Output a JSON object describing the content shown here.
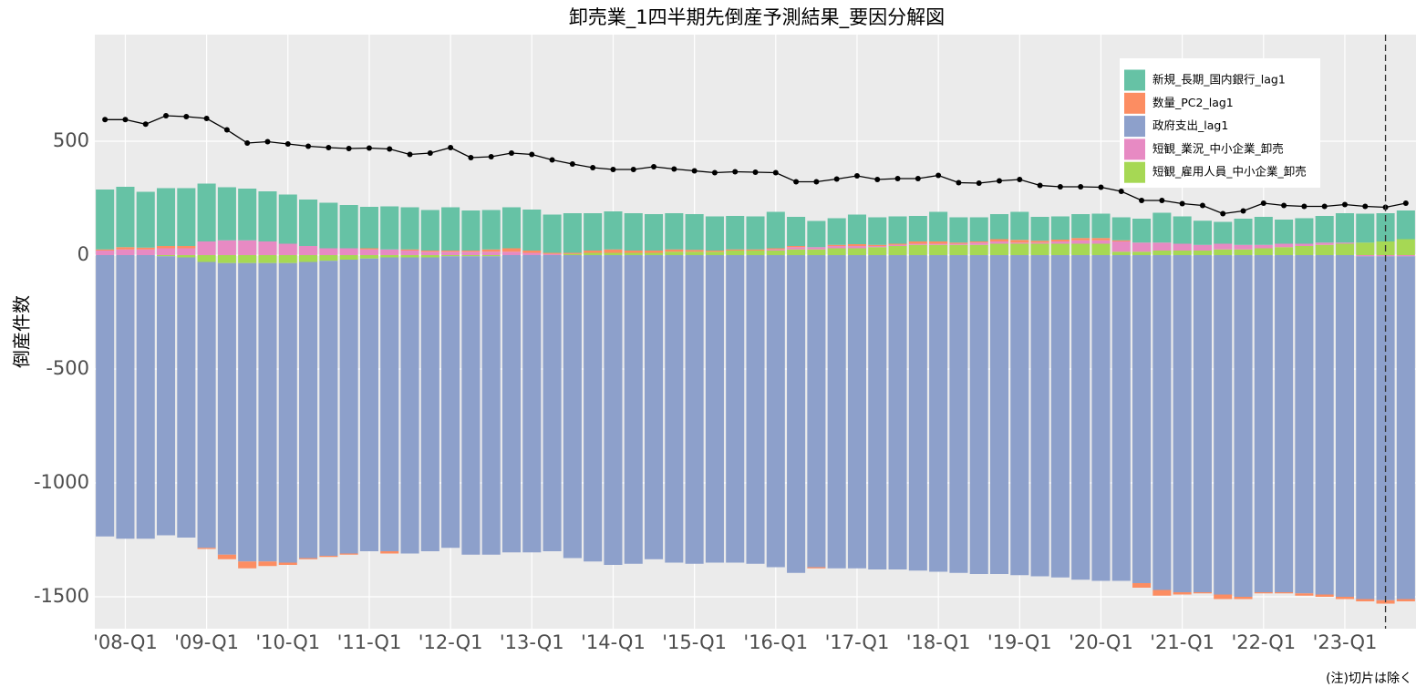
{
  "chart_data": {
    "type": "stacked-bar-line",
    "title": "卸売業_1四半期先倒産予測結果_要因分解図",
    "y_label": "倒産件数",
    "note": "(注)切片は除く",
    "categories": [
      null,
      "'08-Q1",
      null,
      null,
      null,
      "'09-Q1",
      null,
      null,
      null,
      "'10-Q1",
      null,
      null,
      null,
      "'11-Q1",
      null,
      null,
      null,
      "'12-Q1",
      null,
      null,
      null,
      "'13-Q1",
      null,
      null,
      null,
      "'14-Q1",
      null,
      null,
      null,
      "'15-Q1",
      null,
      null,
      null,
      "'16-Q1",
      null,
      null,
      null,
      "'17-Q1",
      null,
      null,
      null,
      "'18-Q1",
      null,
      null,
      null,
      "'19-Q1",
      null,
      null,
      null,
      "'20-Q1",
      null,
      null,
      null,
      "'21-Q1",
      null,
      null,
      null,
      "'22-Q1",
      null,
      null,
      null,
      "'23-Q1",
      null,
      null,
      null
    ],
    "series": [
      {
        "name": "新規_長期_国内銀行_lag1",
        "color": "#66c2a5",
        "values": [
          263,
          265,
          245,
          254,
          254,
          254,
          233,
          227,
          220,
          216,
          204,
          200,
          190,
          182,
          189,
          185,
          178,
          190,
          176,
          173,
          180,
          180,
          168,
          174,
          164,
          167,
          164,
          160,
          159,
          157,
          150,
          147,
          145,
          160,
          128,
          115,
          117,
          130,
          121,
          120,
          112,
          130,
          111,
          106,
          110,
          123,
          105,
          102,
          105,
          107,
          101,
          105,
          131,
          120,
          106,
          96,
          115,
          123,
          106,
          112,
          117,
          129,
          127,
          124,
          126
        ]
      },
      {
        "name": "数量_PC2_lag1",
        "color": "#fc8d62",
        "values": [
          5,
          10,
          8,
          10,
          10,
          -5,
          -20,
          -30,
          -20,
          -10,
          -5,
          -5,
          -5,
          5,
          -10,
          5,
          5,
          5,
          5,
          10,
          15,
          10,
          5,
          5,
          10,
          15,
          10,
          10,
          10,
          8,
          5,
          5,
          5,
          5,
          5,
          -5,
          5,
          8,
          5,
          5,
          10,
          10,
          5,
          5,
          10,
          12,
          8,
          8,
          10,
          10,
          5,
          -20,
          -25,
          -10,
          -5,
          -20,
          -10,
          -5,
          -5,
          -10,
          -10,
          -10,
          -10,
          -15,
          -10
        ]
      },
      {
        "name": "政府支出_lag1",
        "color": "#8da0cb",
        "values": [
          -1235,
          -1245,
          -1245,
          -1225,
          -1230,
          -1255,
          -1280,
          -1310,
          -1310,
          -1315,
          -1300,
          -1295,
          -1290,
          -1285,
          -1290,
          -1300,
          -1290,
          -1280,
          -1310,
          -1310,
          -1305,
          -1305,
          -1300,
          -1330,
          -1345,
          -1360,
          -1355,
          -1335,
          -1350,
          -1355,
          -1350,
          -1350,
          -1355,
          -1370,
          -1395,
          -1370,
          -1375,
          -1375,
          -1380,
          -1380,
          -1385,
          -1390,
          -1395,
          -1400,
          -1400,
          -1405,
          -1410,
          -1415,
          -1425,
          -1430,
          -1430,
          -1440,
          -1470,
          -1480,
          -1480,
          -1490,
          -1500,
          -1480,
          -1480,
          -1485,
          -1490,
          -1500,
          -1505,
          -1510,
          -1505
        ]
      },
      {
        "name": "短観_業況_中小企業_卸売",
        "color": "#e78ac3",
        "values": [
          20,
          25,
          25,
          30,
          30,
          60,
          65,
          65,
          60,
          50,
          40,
          30,
          30,
          25,
          25,
          20,
          15,
          15,
          15,
          15,
          15,
          10,
          5,
          0,
          0,
          0,
          0,
          0,
          0,
          0,
          0,
          0,
          0,
          5,
          10,
          10,
          10,
          10,
          5,
          5,
          5,
          5,
          5,
          10,
          10,
          5,
          5,
          10,
          15,
          15,
          45,
          40,
          35,
          30,
          25,
          25,
          20,
          15,
          15,
          10,
          10,
          5,
          -5,
          -5,
          -5
        ]
      },
      {
        "name": "短観_雇用人員_中小企業_卸売",
        "color": "#a6d854",
        "values": [
          0,
          0,
          0,
          -5,
          -10,
          -30,
          -35,
          -35,
          -35,
          -35,
          -30,
          -25,
          -20,
          -15,
          -10,
          -10,
          -10,
          -5,
          -5,
          -5,
          0,
          0,
          0,
          5,
          10,
          10,
          10,
          10,
          15,
          15,
          15,
          20,
          20,
          20,
          25,
          25,
          30,
          30,
          35,
          40,
          45,
          45,
          45,
          45,
          50,
          50,
          50,
          50,
          50,
          50,
          15,
          15,
          20,
          20,
          20,
          25,
          25,
          30,
          35,
          40,
          45,
          50,
          55,
          60,
          70
        ]
      }
    ],
    "line": {
      "color": "#000000",
      "values": [
        595,
        595,
        575,
        612,
        608,
        600,
        550,
        492,
        498,
        488,
        478,
        472,
        468,
        470,
        466,
        442,
        448,
        472,
        428,
        432,
        448,
        442,
        418,
        400,
        384,
        376,
        376,
        388,
        378,
        370,
        362,
        366,
        364,
        362,
        322,
        322,
        334,
        348,
        332,
        336,
        336,
        350,
        318,
        316,
        326,
        332,
        306,
        300,
        300,
        298,
        280,
        240,
        240,
        226,
        218,
        182,
        194,
        228,
        218,
        214,
        214,
        222,
        214,
        210,
        228
      ]
    },
    "vline_index": 63,
    "ylim": [
      -1640,
      968
    ],
    "yticks": [
      -1500,
      -1000,
      -500,
      0,
      500
    ],
    "grid": true,
    "legend": "top-right"
  }
}
